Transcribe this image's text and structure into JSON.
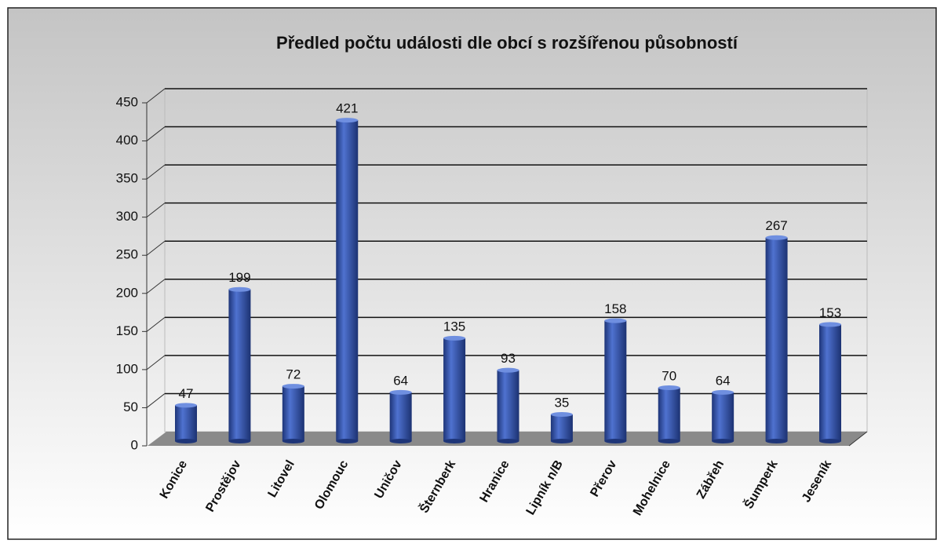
{
  "chart_data": {
    "type": "bar",
    "title": "Předled počtu události dle obcí s rozšířenou působností",
    "categories": [
      "Konice",
      "Prostějov",
      "Litovel",
      "Olomouc",
      "Uničov",
      "Šternberk",
      "Hranice",
      "Lipník n/B",
      "Přerov",
      "Mohelnice",
      "Zábřeh",
      "Šumperk",
      "Jeseník"
    ],
    "values": [
      47,
      199,
      72,
      421,
      64,
      135,
      93,
      35,
      158,
      70,
      64,
      267,
      153
    ],
    "color": "#3a5ab0",
    "ylim": [
      0,
      450
    ],
    "yticks": [
      0,
      50,
      100,
      150,
      200,
      250,
      300,
      350,
      400,
      450
    ],
    "grid": true
  }
}
